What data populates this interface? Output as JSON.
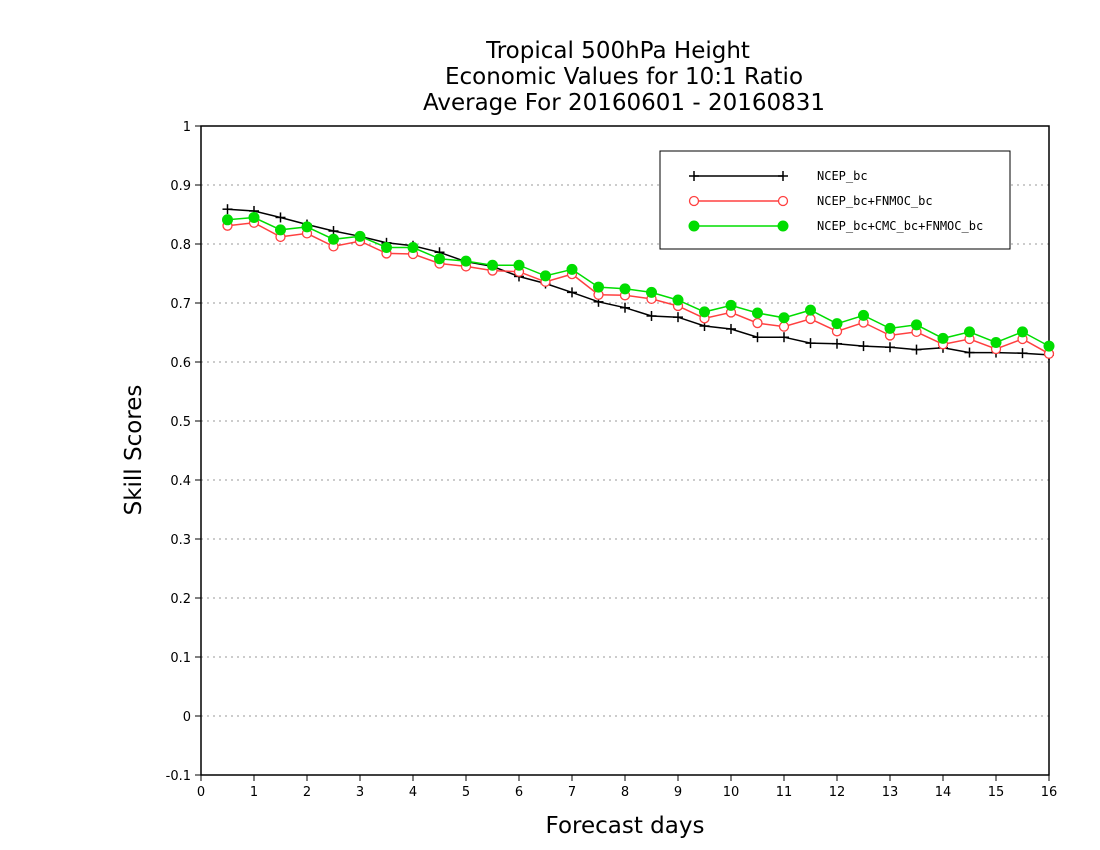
{
  "chart_data": {
    "type": "line",
    "title_lines": [
      "Tropical 500hPa Height",
      "Economic Values for 10:1 Ratio",
      "Average For 20160601 - 20160831"
    ],
    "xlabel": "Forecast days",
    "ylabel": "Skill Scores",
    "xlim": [
      0,
      16
    ],
    "ylim": [
      -0.1,
      1
    ],
    "x_ticks": [
      "0",
      "1",
      "2",
      "3",
      "4",
      "5",
      "6",
      "7",
      "8",
      "9",
      "10",
      "11",
      "12",
      "13",
      "14",
      "15",
      "16"
    ],
    "y_ticks": [
      "-0.1",
      "0",
      "0.1",
      "0.2",
      "0.3",
      "0.4",
      "0.5",
      "0.6",
      "0.7",
      "0.8",
      "0.9",
      "1"
    ],
    "grid": "horizontal dotted",
    "legend_position": "top-right",
    "x": [
      0.5,
      1,
      1.5,
      2,
      2.5,
      3,
      3.5,
      4,
      4.5,
      5,
      5.5,
      6,
      6.5,
      7,
      7.5,
      8,
      8.5,
      9,
      9.5,
      10,
      10.5,
      11,
      11.5,
      12,
      12.5,
      13,
      13.5,
      14,
      14.5,
      15,
      15.5,
      16
    ],
    "series": [
      {
        "name": "NCEP_bc",
        "color": "#000000",
        "marker": "plus",
        "values": [
          0.859,
          0.856,
          0.845,
          0.833,
          0.822,
          0.813,
          0.802,
          0.797,
          0.786,
          0.77,
          0.762,
          0.745,
          0.733,
          0.718,
          0.702,
          0.692,
          0.678,
          0.676,
          0.661,
          0.656,
          0.642,
          0.642,
          0.632,
          0.631,
          0.627,
          0.625,
          0.621,
          0.624,
          0.616,
          0.616,
          0.615,
          0.612
        ]
      },
      {
        "name": "NCEP_bc+FNMOC_bc",
        "color": "#ff4040",
        "marker": "open-circle",
        "values": [
          0.831,
          0.836,
          0.812,
          0.818,
          0.796,
          0.805,
          0.784,
          0.783,
          0.767,
          0.762,
          0.755,
          0.753,
          0.736,
          0.749,
          0.714,
          0.713,
          0.707,
          0.695,
          0.674,
          0.684,
          0.666,
          0.66,
          0.673,
          0.652,
          0.667,
          0.645,
          0.651,
          0.63,
          0.639,
          0.622,
          0.639,
          0.614
        ]
      },
      {
        "name": "NCEP_bc+CMC_bc+FNMOC_bc",
        "color": "#00dd00",
        "marker": "filled-circle",
        "values": [
          0.841,
          0.845,
          0.824,
          0.829,
          0.808,
          0.813,
          0.794,
          0.794,
          0.775,
          0.771,
          0.764,
          0.764,
          0.746,
          0.757,
          0.727,
          0.724,
          0.718,
          0.705,
          0.685,
          0.696,
          0.683,
          0.675,
          0.688,
          0.665,
          0.679,
          0.657,
          0.663,
          0.64,
          0.651,
          0.633,
          0.651,
          0.627
        ]
      }
    ]
  }
}
